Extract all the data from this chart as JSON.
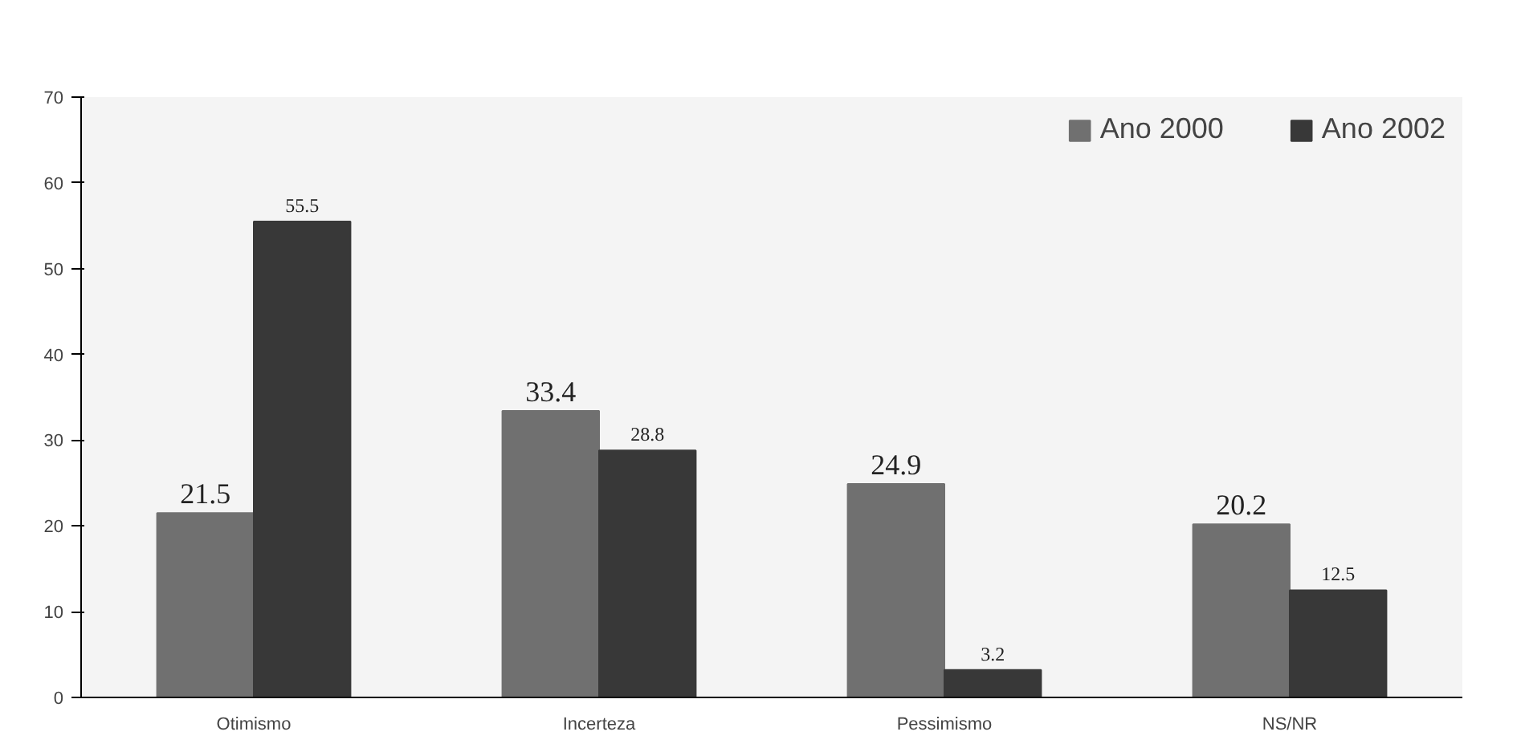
{
  "chart_data": {
    "type": "bar",
    "categories": [
      "Otimismo",
      "Incerteza",
      "Pessimismo",
      "NS/NR"
    ],
    "series": [
      {
        "name": "Ano 2000",
        "color": "#707070",
        "values": [
          21.5,
          33.4,
          24.9,
          20.2
        ]
      },
      {
        "name": "Ano 2002",
        "color": "#383838",
        "values": [
          55.5,
          28.8,
          3.2,
          12.5
        ]
      }
    ],
    "ylim": [
      0,
      70
    ],
    "yticks": [
      0,
      10,
      20,
      30,
      40,
      50,
      60,
      70
    ],
    "grid": false,
    "legend": "top right",
    "data_labels": true
  }
}
